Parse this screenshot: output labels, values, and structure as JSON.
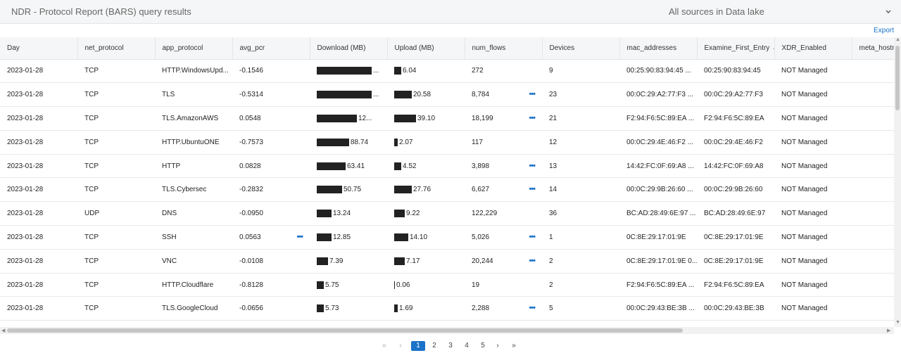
{
  "header": {
    "title": "NDR - Protocol Report (BARS) query results",
    "sources": "All sources in Data lake"
  },
  "toolbar": {
    "export": "Export"
  },
  "columns": [
    "Day",
    "net_protocol",
    "app_protocol",
    "avg_pcr",
    "Download (MB)",
    "Upload (MB)",
    "num_flows",
    "Devices",
    "mac_addresses",
    "Examine_First_Entry →",
    "XDR_Enabled",
    "meta_hostn"
  ],
  "rows": [
    {
      "day": "2023-01-28",
      "net": "TCP",
      "app": "HTTP.WindowsUpd...",
      "pcr": "-0.1546",
      "dl": "...",
      "dl_frac": 0.95,
      "ul": "6.04",
      "ul_frac": 0.12,
      "flows": "272",
      "flows_more": false,
      "pcr_more": false,
      "devices": "9",
      "mac": "00:25:90:83:94:45 ...",
      "first": "00:25:90:83:94:45",
      "xdr": "NOT Managed"
    },
    {
      "day": "2023-01-28",
      "net": "TCP",
      "app": "TLS",
      "pcr": "-0.5314",
      "dl": "...",
      "dl_frac": 0.95,
      "ul": "20.58",
      "ul_frac": 0.3,
      "flows": "8,784",
      "flows_more": true,
      "pcr_more": false,
      "devices": "23",
      "mac": "00:0C:29:A2:77:F3 ...",
      "first": "00:0C:29:A2:77:F3",
      "xdr": "NOT Managed"
    },
    {
      "day": "2023-01-28",
      "net": "TCP",
      "app": "TLS.AmazonAWS",
      "pcr": "0.0548",
      "dl": "12...",
      "dl_frac": 0.7,
      "ul": "39.10",
      "ul_frac": 0.38,
      "flows": "18,199",
      "flows_more": true,
      "pcr_more": false,
      "devices": "21",
      "mac": "F2:94:F6:5C:89:EA ...",
      "first": "F2:94:F6:5C:89:EA",
      "xdr": "NOT Managed"
    },
    {
      "day": "2023-01-28",
      "net": "TCP",
      "app": "HTTP.UbuntuONE",
      "pcr": "-0.7573",
      "dl": "88.74",
      "dl_frac": 0.56,
      "ul": "2.07",
      "ul_frac": 0.06,
      "flows": "117",
      "flows_more": false,
      "pcr_more": false,
      "devices": "12",
      "mac": "00:0C:29:4E:46:F2 ...",
      "first": "00:0C:29:4E:46:F2",
      "xdr": "NOT Managed"
    },
    {
      "day": "2023-01-28",
      "net": "TCP",
      "app": "HTTP",
      "pcr": "0.0828",
      "dl": "63.41",
      "dl_frac": 0.5,
      "ul": "4.52",
      "ul_frac": 0.12,
      "flows": "3,898",
      "flows_more": true,
      "pcr_more": false,
      "devices": "13",
      "mac": "14:42:FC:0F:69:A8 ...",
      "first": "14:42:FC:0F:69:A8",
      "xdr": "NOT Managed"
    },
    {
      "day": "2023-01-28",
      "net": "TCP",
      "app": "TLS.Cybersec",
      "pcr": "-0.2832",
      "dl": "50.75",
      "dl_frac": 0.44,
      "ul": "27.76",
      "ul_frac": 0.3,
      "flows": "6,627",
      "flows_more": true,
      "pcr_more": false,
      "devices": "14",
      "mac": "00:0C:29:9B:26:60 ...",
      "first": "00:0C:29:9B:26:60",
      "xdr": "NOT Managed"
    },
    {
      "day": "2023-01-28",
      "net": "UDP",
      "app": "DNS",
      "pcr": "-0.0950",
      "dl": "13.24",
      "dl_frac": 0.25,
      "ul": "9.22",
      "ul_frac": 0.18,
      "flows": "122,229",
      "flows_more": false,
      "pcr_more": false,
      "devices": "36",
      "mac": "BC:AD:28:49:6E:97 ...",
      "first": "BC:AD:28:49:6E:97",
      "xdr": "NOT Managed"
    },
    {
      "day": "2023-01-28",
      "net": "TCP",
      "app": "SSH",
      "pcr": "0.0563",
      "dl": "12.85",
      "dl_frac": 0.25,
      "ul": "14.10",
      "ul_frac": 0.24,
      "flows": "5,026",
      "flows_more": true,
      "pcr_more": true,
      "devices": "1",
      "mac": "0C:8E:29:17:01:9E",
      "first": "0C:8E:29:17:01:9E",
      "xdr": "NOT Managed"
    },
    {
      "day": "2023-01-28",
      "net": "TCP",
      "app": "VNC",
      "pcr": "-0.0108",
      "dl": "7.39",
      "dl_frac": 0.19,
      "ul": "7.17",
      "ul_frac": 0.18,
      "flows": "20,244",
      "flows_more": true,
      "pcr_more": false,
      "devices": "2",
      "mac": "0C:8E:29:17:01:9E 0...",
      "first": "0C:8E:29:17:01:9E",
      "xdr": "NOT Managed"
    },
    {
      "day": "2023-01-28",
      "net": "TCP",
      "app": "HTTP.Cloudflare",
      "pcr": "-0.8128",
      "dl": "5.75",
      "dl_frac": 0.12,
      "ul": "0.06",
      "ul_frac": 0.01,
      "flows": "19",
      "flows_more": false,
      "pcr_more": false,
      "devices": "2",
      "mac": "F2:94:F6:5C:89:EA ...",
      "first": "F2:94:F6:5C:89:EA",
      "xdr": "NOT Managed"
    },
    {
      "day": "2023-01-28",
      "net": "TCP",
      "app": "TLS.GoogleCloud",
      "pcr": "-0.0656",
      "dl": "5.73",
      "dl_frac": 0.12,
      "ul": "1.69",
      "ul_frac": 0.06,
      "flows": "2,288",
      "flows_more": true,
      "pcr_more": false,
      "devices": "5",
      "mac": "00:0C:29:43:BE:3B ...",
      "first": "00:0C:29:43:BE:3B",
      "xdr": "NOT Managed"
    }
  ],
  "pagination": {
    "first": "«",
    "prev": "‹",
    "pages": [
      "1",
      "2",
      "3",
      "4",
      "5"
    ],
    "active": "1",
    "next": "›",
    "last": "»"
  },
  "icons": {
    "chevron": "chevron-down-icon",
    "more": "more-icon"
  }
}
